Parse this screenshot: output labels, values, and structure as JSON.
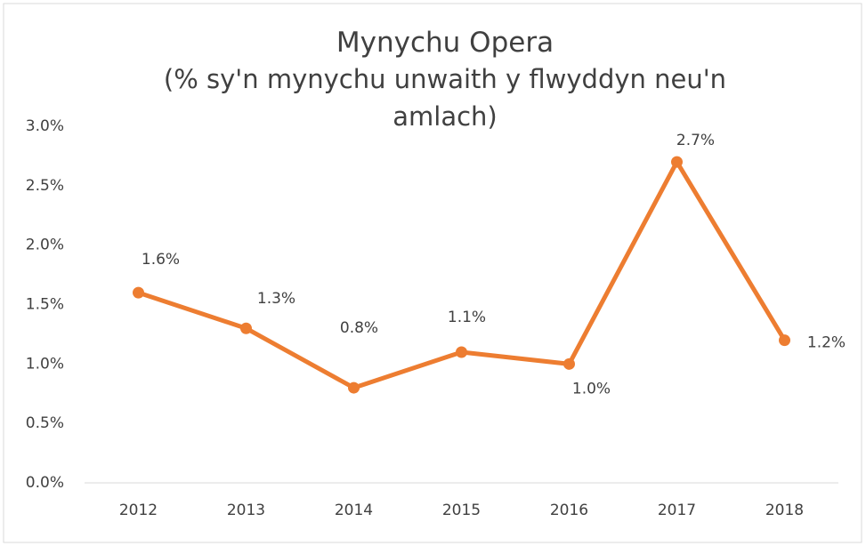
{
  "chart_data": {
    "type": "line",
    "title": "Mynychu Opera",
    "subtitle": "(% sy'n mynychu unwaith y flwyddyn neu'n amlach)",
    "categories": [
      "2012",
      "2013",
      "2014",
      "2015",
      "2016",
      "2017",
      "2018"
    ],
    "series": [
      {
        "name": "Opera",
        "color": "#ED7D31",
        "values": [
          1.6,
          1.3,
          0.8,
          1.1,
          1.0,
          2.7,
          1.2
        ],
        "value_labels": [
          "1.6%",
          "1.3%",
          "0.8%",
          "1.1%",
          "1.0%",
          "2.7%",
          "1.2%"
        ]
      }
    ],
    "ylim": [
      0,
      3
    ],
    "yticks": [
      {
        "value": 0,
        "label": "0.0%"
      },
      {
        "value": 0.5,
        "label": "0.5%"
      },
      {
        "value": 1,
        "label": "1.0%"
      },
      {
        "value": 1.5,
        "label": "1.5%"
      },
      {
        "value": 2,
        "label": "2.0%"
      },
      {
        "value": 2.5,
        "label": "2.5%"
      },
      {
        "value": 3,
        "label": "3.0%"
      }
    ],
    "grid": false
  }
}
